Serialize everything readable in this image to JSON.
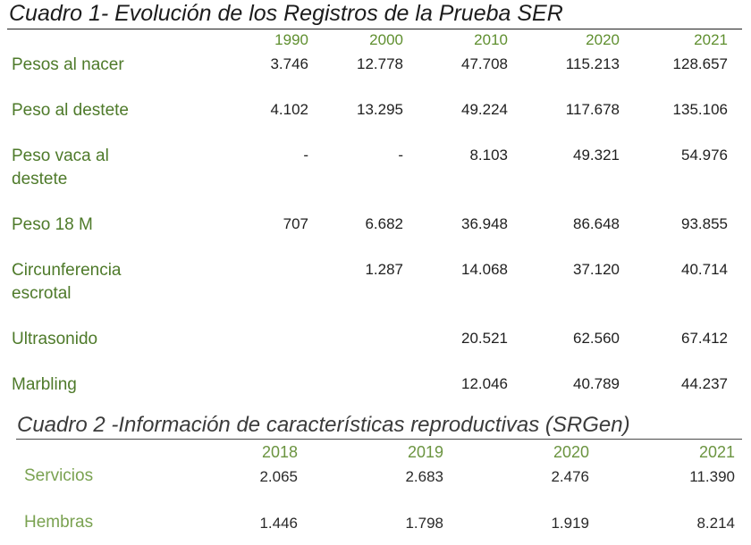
{
  "table1": {
    "title": "Cuadro 1- Evolución de los Registros de la Prueba SER",
    "years": [
      "1990",
      "2000",
      "2010",
      "2020",
      "2021"
    ],
    "rows": [
      {
        "label": "Pesos al nacer",
        "values": [
          "3.746",
          "12.778",
          "47.708",
          "115.213",
          "128.657"
        ]
      },
      {
        "label": "Peso al destete",
        "values": [
          "4.102",
          "13.295",
          "49.224",
          "117.678",
          "135.106"
        ]
      },
      {
        "label": "Peso vaca al destete",
        "values": [
          "-",
          "-",
          "8.103",
          "49.321",
          "54.976"
        ]
      },
      {
        "label": "Peso 18 M",
        "values": [
          "707",
          "6.682",
          "36.948",
          "86.648",
          "93.855"
        ]
      },
      {
        "label": "Circunferencia escrotal",
        "values": [
          "",
          "1.287",
          "14.068",
          "37.120",
          "40.714"
        ]
      },
      {
        "label": "Ultrasonido",
        "values": [
          "",
          "",
          "20.521",
          "62.560",
          "67.412"
        ]
      },
      {
        "label": "Marbling",
        "values": [
          "",
          "",
          "12.046",
          "40.789",
          "44.237"
        ]
      }
    ]
  },
  "table2": {
    "title": "Cuadro 2 -Información de características reproductivas (SRGen)",
    "years": [
      "2018",
      "2019",
      "2020",
      "2021"
    ],
    "rows": [
      {
        "label": "Servicios",
        "values": [
          "2.065",
          "2.683",
          "2.476",
          "11.390"
        ]
      },
      {
        "label": "Hembras",
        "values": [
          "1.446",
          "1.798",
          "1.919",
          "8.214"
        ]
      }
    ]
  }
}
